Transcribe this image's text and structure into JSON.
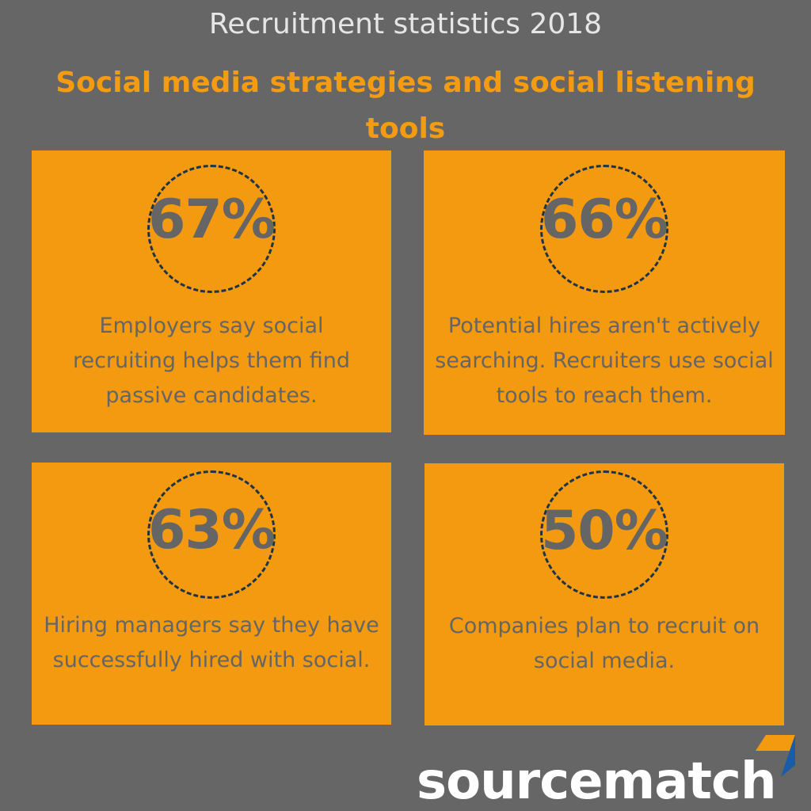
{
  "header": {
    "title": "Recruitment statistics 2018",
    "subtitle": "Social media strategies and social listening tools"
  },
  "stats": [
    {
      "value": "67%",
      "description": "Employers say social recruiting helps them find passive candidates."
    },
    {
      "value": "66%",
      "description": "Potential hires aren't actively searching. Recruiters use social tools to reach them."
    },
    {
      "value": "63%",
      "description": "Hiring managers say they have successfully hired with social."
    },
    {
      "value": "50%",
      "description": "Companies plan to recruit on social media."
    }
  ],
  "logo": {
    "text": "sourcematch"
  },
  "colors": {
    "background": "#666666",
    "accent": "#f39a11",
    "text": "#656565",
    "circle": "#1e3446",
    "logo_blue": "#1a5ca8"
  }
}
